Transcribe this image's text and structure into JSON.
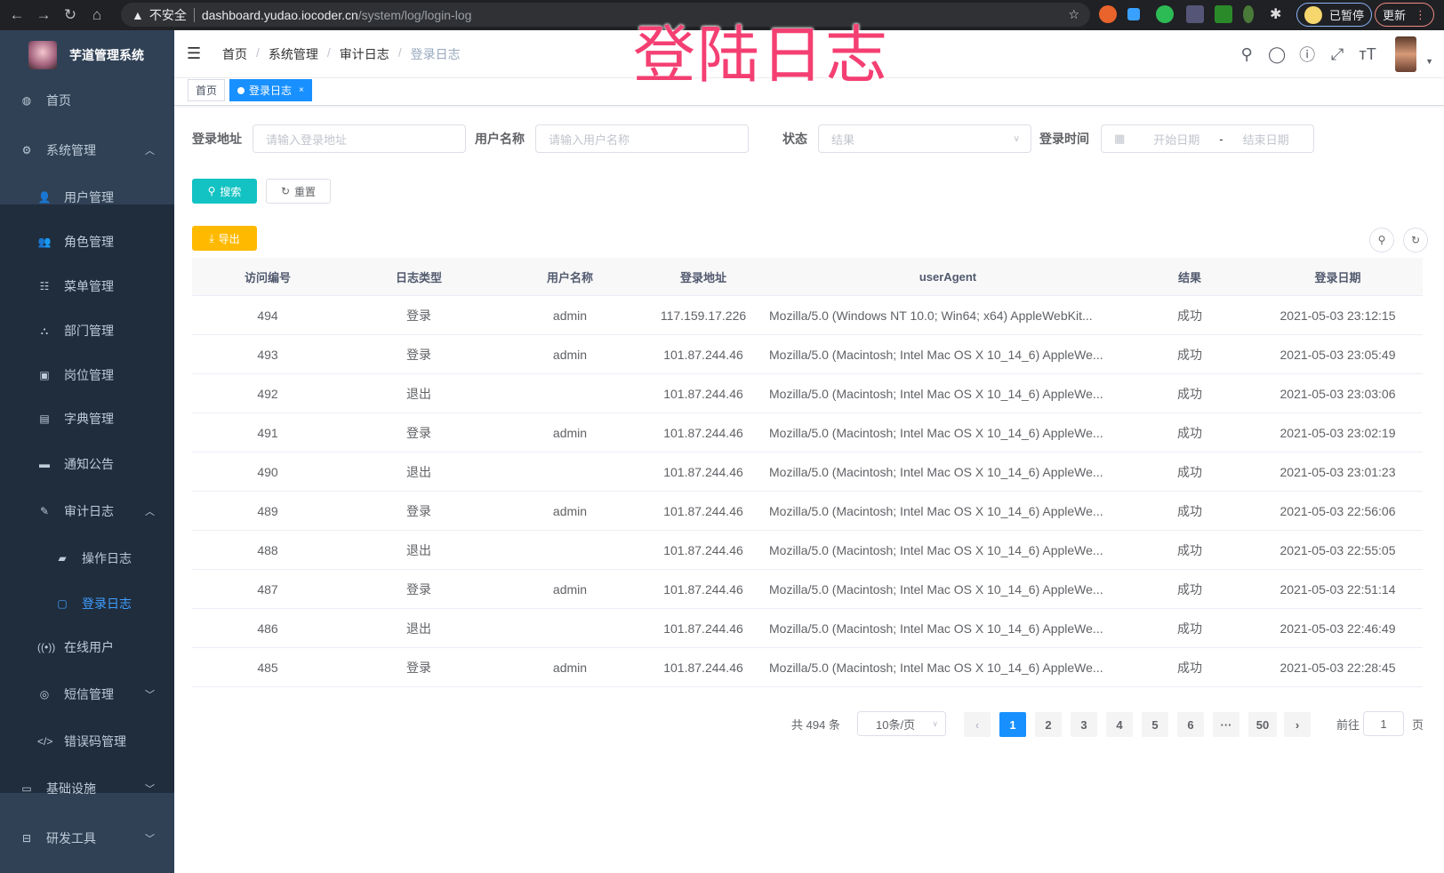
{
  "browser": {
    "security": "不安全",
    "host": "dashboard.yudao.iocoder.cn",
    "path": "/system/log/login-log",
    "profile": "已暂停",
    "update": "更新"
  },
  "overlay_title": "登陆日志",
  "sidebar": {
    "logo": "芋道管理系统",
    "items": [
      {
        "label": "首页",
        "icon": "dashboard-icon",
        "glyph": "◍",
        "level": 0
      },
      {
        "label": "系统管理",
        "icon": "gear-icon",
        "glyph": "⚙",
        "level": 0,
        "arrow": "up"
      },
      {
        "label": "用户管理",
        "icon": "user-icon",
        "glyph": "👤",
        "level": 1
      },
      {
        "label": "角色管理",
        "icon": "peoples-icon",
        "glyph": "👥",
        "level": 1
      },
      {
        "label": "菜单管理",
        "icon": "tree-table-icon",
        "glyph": "☷",
        "level": 1
      },
      {
        "label": "部门管理",
        "icon": "tree-icon",
        "glyph": "⛬",
        "level": 1
      },
      {
        "label": "岗位管理",
        "icon": "post-icon",
        "glyph": "▣",
        "level": 1
      },
      {
        "label": "字典管理",
        "icon": "dict-icon",
        "glyph": "▤",
        "level": 1
      },
      {
        "label": "通知公告",
        "icon": "message-icon",
        "glyph": "▬",
        "level": 1
      },
      {
        "label": "审计日志",
        "icon": "log-icon",
        "glyph": "✎",
        "level": 1,
        "arrow": "up"
      },
      {
        "label": "操作日志",
        "icon": "form-icon",
        "glyph": "▰",
        "level": 2
      },
      {
        "label": "登录日志",
        "icon": "logininfor-icon",
        "glyph": "▢",
        "level": 2,
        "active": true
      },
      {
        "label": "在线用户",
        "icon": "online-icon",
        "glyph": "((•))",
        "level": 1
      },
      {
        "label": "短信管理",
        "icon": "validCode-icon",
        "glyph": "◎",
        "level": 1,
        "arrow": "down"
      },
      {
        "label": "错误码管理",
        "icon": "code-icon",
        "glyph": "</>",
        "level": 1
      },
      {
        "label": "基础设施",
        "icon": "monitor-icon",
        "glyph": "▭",
        "level": 0,
        "arrow": "down"
      },
      {
        "label": "研发工具",
        "icon": "tool-icon",
        "glyph": "⊟",
        "level": 0,
        "arrow": "down"
      }
    ]
  },
  "breadcrumb": [
    "首页",
    "系统管理",
    "审计日志",
    "登录日志"
  ],
  "tags": [
    {
      "label": "首页"
    },
    {
      "label": "登录日志",
      "active": true,
      "close": "×"
    }
  ],
  "filters": {
    "ip": {
      "label": "登录地址",
      "placeholder": "请输入登录地址"
    },
    "username": {
      "label": "用户名称",
      "placeholder": "请输入用户名称"
    },
    "status": {
      "label": "状态",
      "placeholder": "结果"
    },
    "time": {
      "label": "登录时间",
      "start": "开始日期",
      "sep": "-",
      "end": "结束日期"
    }
  },
  "buttons": {
    "search": "搜索",
    "reset": "重置",
    "export": "导出"
  },
  "colors": {
    "primary": "#1890ff",
    "search": "#13c2c2",
    "export": "#ffba00",
    "sidebar": "#304156",
    "submenu": "#1f2d3d"
  },
  "table": {
    "columns": [
      "访问编号",
      "日志类型",
      "用户名称",
      "登录地址",
      "userAgent",
      "结果",
      "登录日期"
    ],
    "rows": [
      [
        "494",
        "登录",
        "admin",
        "117.159.17.226",
        "Mozilla/5.0 (Windows NT 10.0; Win64; x64) AppleWebKit...",
        "成功",
        "2021-05-03 23:12:15"
      ],
      [
        "493",
        "登录",
        "admin",
        "101.87.244.46",
        "Mozilla/5.0 (Macintosh; Intel Mac OS X 10_14_6) AppleWe...",
        "成功",
        "2021-05-03 23:05:49"
      ],
      [
        "492",
        "退出",
        "",
        "101.87.244.46",
        "Mozilla/5.0 (Macintosh; Intel Mac OS X 10_14_6) AppleWe...",
        "成功",
        "2021-05-03 23:03:06"
      ],
      [
        "491",
        "登录",
        "admin",
        "101.87.244.46",
        "Mozilla/5.0 (Macintosh; Intel Mac OS X 10_14_6) AppleWe...",
        "成功",
        "2021-05-03 23:02:19"
      ],
      [
        "490",
        "退出",
        "",
        "101.87.244.46",
        "Mozilla/5.0 (Macintosh; Intel Mac OS X 10_14_6) AppleWe...",
        "成功",
        "2021-05-03 23:01:23"
      ],
      [
        "489",
        "登录",
        "admin",
        "101.87.244.46",
        "Mozilla/5.0 (Macintosh; Intel Mac OS X 10_14_6) AppleWe...",
        "成功",
        "2021-05-03 22:56:06"
      ],
      [
        "488",
        "退出",
        "",
        "101.87.244.46",
        "Mozilla/5.0 (Macintosh; Intel Mac OS X 10_14_6) AppleWe...",
        "成功",
        "2021-05-03 22:55:05"
      ],
      [
        "487",
        "登录",
        "admin",
        "101.87.244.46",
        "Mozilla/5.0 (Macintosh; Intel Mac OS X 10_14_6) AppleWe...",
        "成功",
        "2021-05-03 22:51:14"
      ],
      [
        "486",
        "退出",
        "",
        "101.87.244.46",
        "Mozilla/5.0 (Macintosh; Intel Mac OS X 10_14_6) AppleWe...",
        "成功",
        "2021-05-03 22:46:49"
      ],
      [
        "485",
        "登录",
        "admin",
        "101.87.244.46",
        "Mozilla/5.0 (Macintosh; Intel Mac OS X 10_14_6) AppleWe...",
        "成功",
        "2021-05-03 22:28:45"
      ]
    ]
  },
  "pagination": {
    "total": "共 494 条",
    "page_size": "10条/页",
    "pages": [
      "1",
      "2",
      "3",
      "4",
      "5",
      "6",
      "···",
      "50"
    ],
    "current": "1",
    "goto_label": "前往",
    "goto_value": "1",
    "goto_suffix": "页"
  }
}
